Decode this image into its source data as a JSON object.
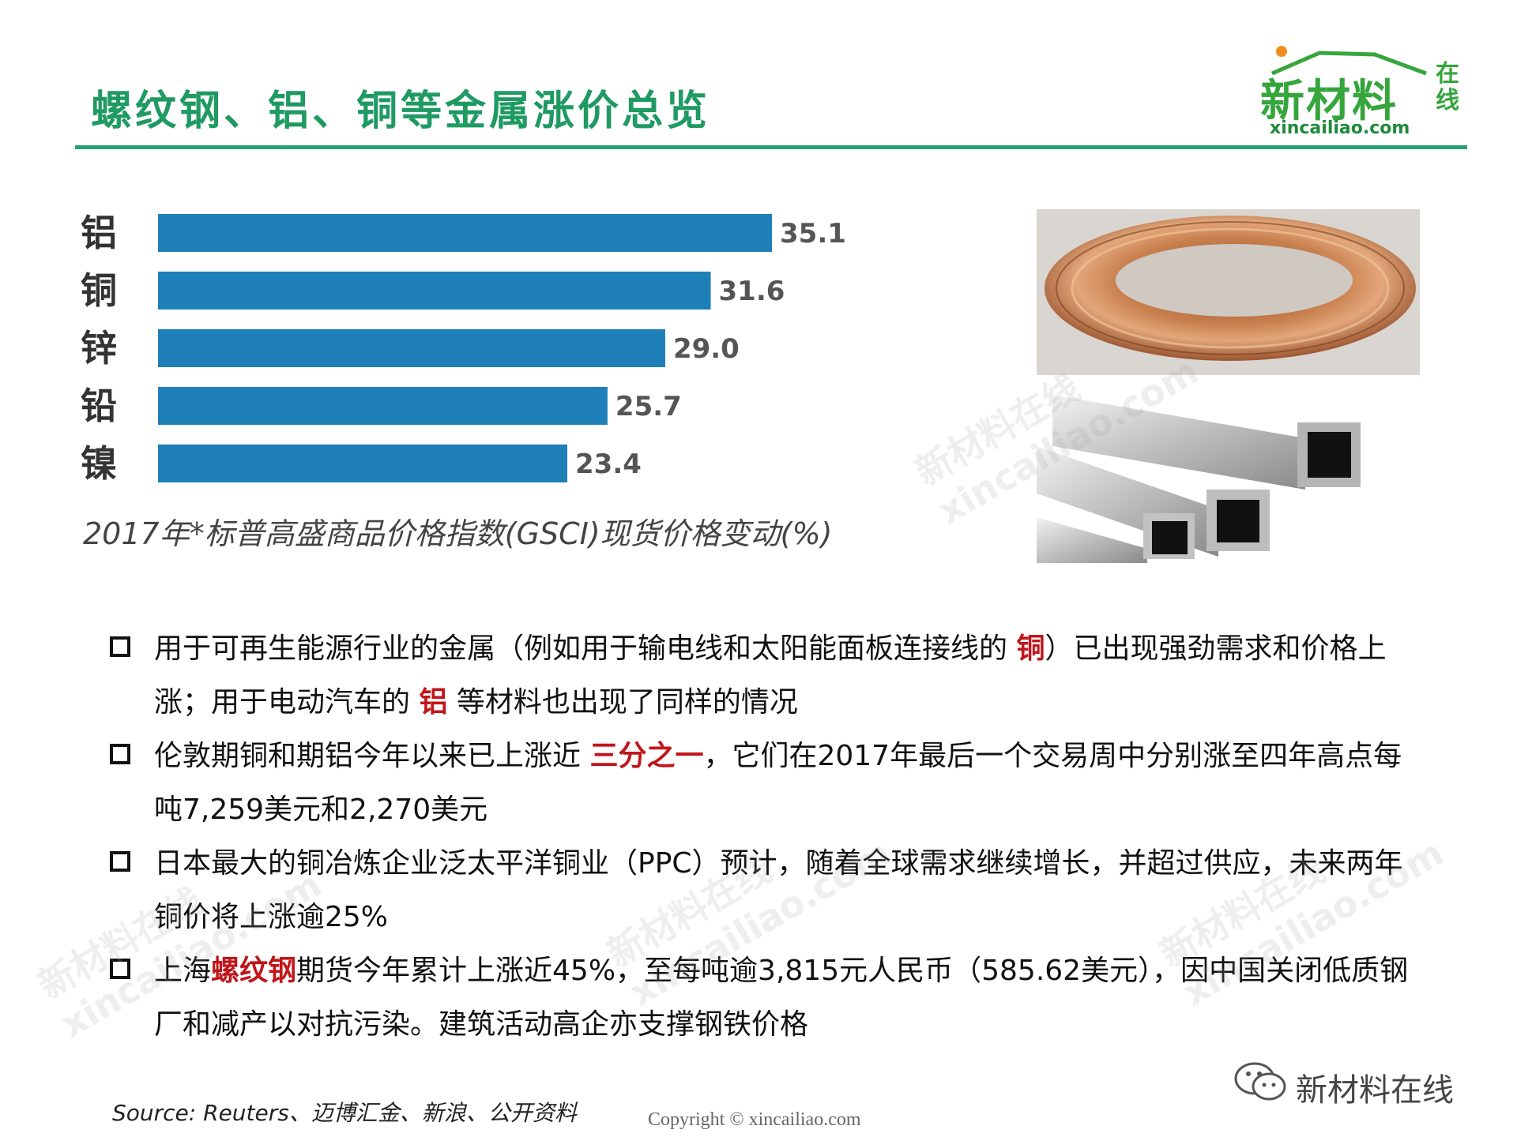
{
  "header": {
    "title": "螺纹钢、铝、铜等金属涨价总览"
  },
  "logo": {
    "main": "新材料",
    "side": "在线",
    "url": "xincailiao.com",
    "colors": {
      "green": "#35a53c",
      "orange": "#f28c1e"
    }
  },
  "chart_data": {
    "type": "bar",
    "orientation": "horizontal",
    "categories": [
      "铝",
      "铜",
      "锌",
      "铅",
      "镍"
    ],
    "values": [
      35.1,
      31.6,
      29.0,
      25.7,
      23.4
    ],
    "value_labels": [
      "35.1",
      "31.6",
      "29.0",
      "25.7",
      "23.4"
    ],
    "title": "2017年*标普高盛商品价格指数(GSCI)现货价格变动(%)",
    "bar_color": "#1f7fb8",
    "xlim": [
      0,
      40
    ],
    "grid": false,
    "legend": "none"
  },
  "images": {
    "copper": "copper-wire-coil",
    "aluminum": "aluminum-square-tubes"
  },
  "bullets": [
    {
      "parts": [
        {
          "t": "用于可再生能源行业的金属（例如用于输电线和太阳能面板连接线的 ",
          "h": false
        },
        {
          "t": "铜",
          "h": true
        },
        {
          "t": "）已出现强劲需求和价格上涨；用于电动汽车的 ",
          "h": false
        },
        {
          "t": "铝",
          "h": true
        },
        {
          "t": " 等材料也出现了同样的情况",
          "h": false
        }
      ]
    },
    {
      "parts": [
        {
          "t": "伦敦期铜和期铝今年以来已上涨近 ",
          "h": false
        },
        {
          "t": "三分之一",
          "h": true
        },
        {
          "t": "，它们在2017年最后一个交易周中分别涨至四年高点每吨7,259美元和2,270美元",
          "h": false
        }
      ]
    },
    {
      "parts": [
        {
          "t": "日本最大的铜冶炼企业泛太平洋铜业（PPC）预计，随着全球需求继续增长，并超过供应，未来两年铜价将上涨逾25%",
          "h": false
        }
      ]
    },
    {
      "parts": [
        {
          "t": "上海",
          "h": false
        },
        {
          "t": "螺纹钢",
          "h": true
        },
        {
          "t": "期货今年累计上涨近45%，至每吨逾3,815元人民币（585.62美元），因中国关闭低质钢厂和减产以对抗污染。建筑活动高企亦支撑钢铁价格",
          "h": false
        }
      ]
    }
  ],
  "footer": {
    "source": "Source: Reuters、迈博汇金、新浪、公开资料",
    "copyright": "Copyright © xincailiao.com",
    "wechat_name": "新材料在线"
  },
  "watermark": {
    "cn": "新材料在线",
    "en": "xincailiao.com"
  }
}
